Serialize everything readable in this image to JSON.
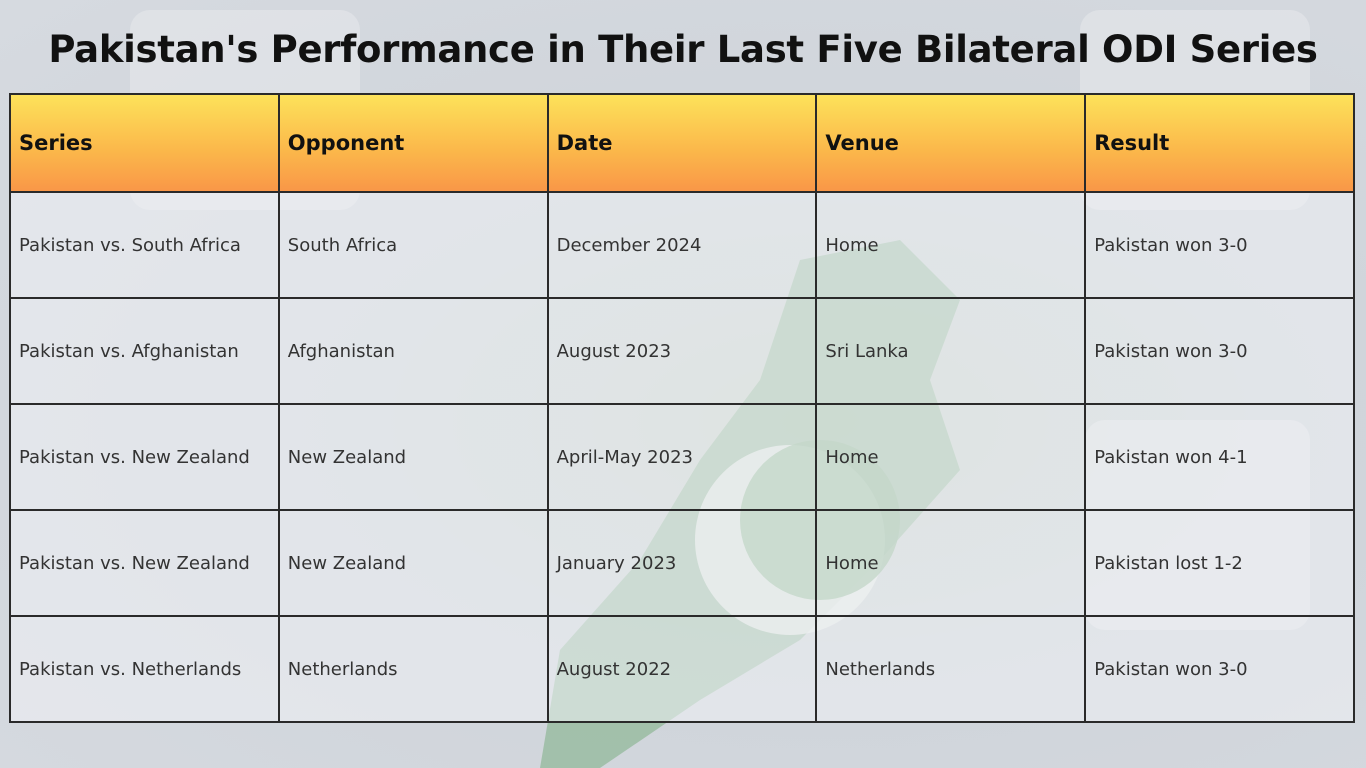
{
  "header": {
    "title": "Pakistan's Performance in Their Last Five Bilateral ODI Series"
  },
  "table": {
    "columns": [
      "Series",
      "Opponent",
      "Date",
      "Venue",
      "Result"
    ],
    "rows": [
      [
        "Pakistan vs. South Africa",
        "South Africa",
        "December 2024",
        "Home",
        "Pakistan won 3-0"
      ],
      [
        "Pakistan vs. Afghanistan",
        "Afghanistan",
        "August 2023",
        "Sri Lanka",
        "Pakistan won 3-0"
      ],
      [
        "Pakistan vs. New Zealand",
        "New Zealand",
        "April-May 2023",
        "Home",
        "Pakistan won 4-1"
      ],
      [
        "Pakistan vs. New Zealand",
        "New Zealand",
        "January 2023",
        "Home",
        "Pakistan lost 1-2"
      ],
      [
        "Pakistan vs. Netherlands",
        "Netherlands",
        "August 2022",
        "Netherlands",
        "Pakistan won 3-0"
      ]
    ]
  }
}
